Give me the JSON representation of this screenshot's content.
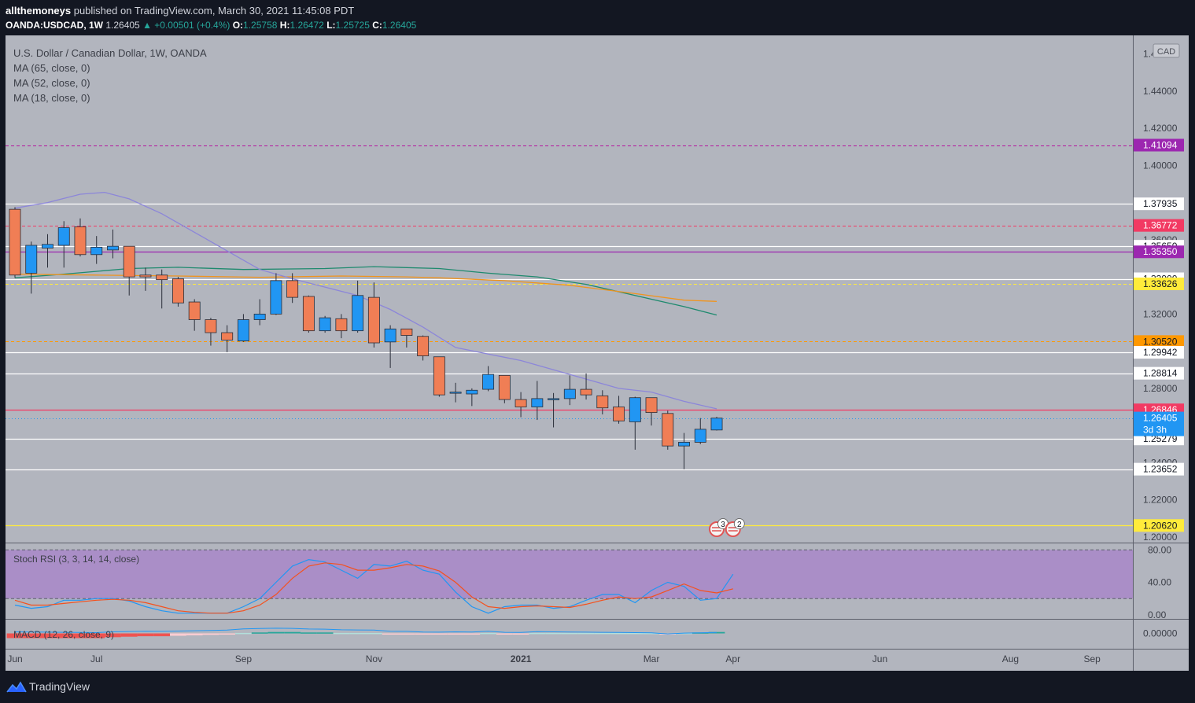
{
  "header": {
    "author": "allthemoneys",
    "published_text": "published on TradingView.com, March 30, 2021 11:45:08 PDT",
    "symbol": "OANDA:USDCAD, 1W",
    "last": "1.26405",
    "change": "▲ +0.00501 (+0.4%)",
    "o_label": "O:",
    "o_value": "1.25758",
    "h_label": "H:",
    "h_value": "1.26472",
    "l_label": "L:",
    "l_value": "1.25725",
    "c_label": "C:",
    "c_value": "1.26405"
  },
  "legend": {
    "title": "U.S. Dollar / Canadian Dollar, 1W, OANDA",
    "ma1": "MA (65, close, 0)",
    "ma2": "MA (52, close, 0)",
    "ma3": "MA (18, close, 0)"
  },
  "currency_badge": "CAD",
  "footer": {
    "brand": "TradingView"
  },
  "colors": {
    "pane_bg": "#b2b5be",
    "rsi_band": "#a887c9",
    "up": "#2196f3",
    "down": "#f07e55",
    "ma65": "#1e8a6e",
    "ma52": "#f0941e",
    "ma18": "#8c86d9"
  },
  "chart_data": [
    {
      "type": "candlestick",
      "title": "U.S. Dollar / Canadian Dollar, 1W, OANDA",
      "ylim": [
        1.197,
        1.47
      ],
      "y_ticks": [
        "1.20000",
        "1.22000",
        "1.24000",
        "1.26000",
        "1.28000",
        "1.30000",
        "1.32000",
        "1.34000",
        "1.36000",
        "1.38000",
        "1.40000",
        "1.42000",
        "1.44000",
        "1.46000"
      ],
      "x_ticks": [
        {
          "label": "Jun",
          "i": 0
        },
        {
          "label": "Jul",
          "i": 5
        },
        {
          "label": "Sep",
          "i": 14
        },
        {
          "label": "Nov",
          "i": 22
        },
        {
          "label": "2021",
          "i": 31
        },
        {
          "label": "Mar",
          "i": 39
        },
        {
          "label": "Apr",
          "i": 44
        },
        {
          "label": "Jun",
          "i": 53
        },
        {
          "label": "Aug",
          "i": 61
        },
        {
          "label": "Sep",
          "i": 66
        }
      ],
      "x_max": 68.5,
      "candles": [
        {
          "o": 1.3764,
          "h": 1.3775,
          "l": 1.3395,
          "c": 1.341
        },
        {
          "o": 1.342,
          "h": 1.359,
          "l": 1.331,
          "c": 1.357
        },
        {
          "o": 1.3555,
          "h": 1.363,
          "l": 1.345,
          "c": 1.3575
        },
        {
          "o": 1.357,
          "h": 1.37,
          "l": 1.345,
          "c": 1.3665
        },
        {
          "o": 1.367,
          "h": 1.3715,
          "l": 1.351,
          "c": 1.352
        },
        {
          "o": 1.352,
          "h": 1.362,
          "l": 1.347,
          "c": 1.356
        },
        {
          "o": 1.3545,
          "h": 1.3655,
          "l": 1.35,
          "c": 1.3565
        },
        {
          "o": 1.3565,
          "h": 1.3565,
          "l": 1.33,
          "c": 1.34
        },
        {
          "o": 1.341,
          "h": 1.345,
          "l": 1.3325,
          "c": 1.34
        },
        {
          "o": 1.341,
          "h": 1.344,
          "l": 1.323,
          "c": 1.3385
        },
        {
          "o": 1.339,
          "h": 1.34,
          "l": 1.324,
          "c": 1.326
        },
        {
          "o": 1.3265,
          "h": 1.328,
          "l": 1.311,
          "c": 1.317
        },
        {
          "o": 1.317,
          "h": 1.318,
          "l": 1.303,
          "c": 1.31
        },
        {
          "o": 1.31,
          "h": 1.314,
          "l": 1.2995,
          "c": 1.306
        },
        {
          "o": 1.3055,
          "h": 1.32,
          "l": 1.305,
          "c": 1.317
        },
        {
          "o": 1.317,
          "h": 1.328,
          "l": 1.314,
          "c": 1.32
        },
        {
          "o": 1.32,
          "h": 1.342,
          "l": 1.3195,
          "c": 1.338
        },
        {
          "o": 1.338,
          "h": 1.342,
          "l": 1.326,
          "c": 1.329
        },
        {
          "o": 1.3295,
          "h": 1.33,
          "l": 1.31,
          "c": 1.311
        },
        {
          "o": 1.311,
          "h": 1.319,
          "l": 1.31,
          "c": 1.318
        },
        {
          "o": 1.3175,
          "h": 1.32,
          "l": 1.307,
          "c": 1.311
        },
        {
          "o": 1.311,
          "h": 1.338,
          "l": 1.31,
          "c": 1.33
        },
        {
          "o": 1.329,
          "h": 1.337,
          "l": 1.302,
          "c": 1.3045
        },
        {
          "o": 1.305,
          "h": 1.314,
          "l": 1.291,
          "c": 1.312
        },
        {
          "o": 1.312,
          "h": 1.312,
          "l": 1.302,
          "c": 1.3085
        },
        {
          "o": 1.308,
          "h": 1.3085,
          "l": 1.295,
          "c": 1.2975
        },
        {
          "o": 1.297,
          "h": 1.297,
          "l": 1.2755,
          "c": 1.2765
        },
        {
          "o": 1.2775,
          "h": 1.283,
          "l": 1.2725,
          "c": 1.278
        },
        {
          "o": 1.277,
          "h": 1.28,
          "l": 1.2705,
          "c": 1.279
        },
        {
          "o": 1.2795,
          "h": 1.292,
          "l": 1.2785,
          "c": 1.2875
        },
        {
          "o": 1.287,
          "h": 1.287,
          "l": 1.272,
          "c": 1.274
        },
        {
          "o": 1.274,
          "h": 1.278,
          "l": 1.2645,
          "c": 1.27
        },
        {
          "o": 1.27,
          "h": 1.284,
          "l": 1.263,
          "c": 1.2745
        },
        {
          "o": 1.274,
          "h": 1.2775,
          "l": 1.259,
          "c": 1.2745
        },
        {
          "o": 1.2745,
          "h": 1.287,
          "l": 1.271,
          "c": 1.2795
        },
        {
          "o": 1.2795,
          "h": 1.288,
          "l": 1.274,
          "c": 1.2765
        },
        {
          "o": 1.276,
          "h": 1.279,
          "l": 1.266,
          "c": 1.2695
        },
        {
          "o": 1.27,
          "h": 1.276,
          "l": 1.261,
          "c": 1.2625
        },
        {
          "o": 1.262,
          "h": 1.2755,
          "l": 1.247,
          "c": 1.275
        },
        {
          "o": 1.275,
          "h": 1.275,
          "l": 1.26,
          "c": 1.267
        },
        {
          "o": 1.2665,
          "h": 1.268,
          "l": 1.247,
          "c": 1.249
        },
        {
          "o": 1.249,
          "h": 1.256,
          "l": 1.2365,
          "c": 1.251
        },
        {
          "o": 1.251,
          "h": 1.264,
          "l": 1.25,
          "c": 1.258
        },
        {
          "o": 1.2576,
          "h": 1.2647,
          "l": 1.2573,
          "c": 1.264
        }
      ],
      "moving_averages": [
        {
          "name": "MA (65, close, 0)",
          "key": "ma65",
          "points": [
            [
              0,
              1.3395
            ],
            [
              3,
              1.3415
            ],
            [
              7,
              1.3445
            ],
            [
              10,
              1.3452
            ],
            [
              14,
              1.344
            ],
            [
              19,
              1.3445
            ],
            [
              22,
              1.3455
            ],
            [
              26,
              1.3445
            ],
            [
              29,
              1.342
            ],
            [
              32,
              1.34
            ],
            [
              35,
              1.336
            ],
            [
              38,
              1.33
            ],
            [
              41,
              1.324
            ],
            [
              43,
              1.3195
            ]
          ]
        },
        {
          "name": "MA (52, close, 0)",
          "key": "ma52",
          "points": [
            [
              0,
              1.3415
            ],
            [
              5,
              1.341
            ],
            [
              10,
              1.3405
            ],
            [
              15,
              1.3398
            ],
            [
              20,
              1.3405
            ],
            [
              24,
              1.34
            ],
            [
              26,
              1.3395
            ],
            [
              30,
              1.338
            ],
            [
              34,
              1.3355
            ],
            [
              38,
              1.331
            ],
            [
              41,
              1.3275
            ],
            [
              43,
              1.3268
            ]
          ]
        },
        {
          "name": "MA (18, close, 0)",
          "key": "ma18",
          "points": [
            [
              0,
              1.377
            ],
            [
              2,
              1.38
            ],
            [
              4,
              1.3845
            ],
            [
              5.5,
              1.3855
            ],
            [
              7,
              1.382
            ],
            [
              9,
              1.374
            ],
            [
              11,
              1.364
            ],
            [
              13,
              1.354
            ],
            [
              15,
              1.344
            ],
            [
              17,
              1.339
            ],
            [
              19,
              1.3345
            ],
            [
              21,
              1.33
            ],
            [
              23,
              1.3225
            ],
            [
              25,
              1.313
            ],
            [
              27,
              1.302
            ],
            [
              29,
              1.2985
            ],
            [
              31,
              1.295
            ],
            [
              33,
              1.29
            ],
            [
              35,
              1.285
            ],
            [
              37,
              1.28
            ],
            [
              39,
              1.278
            ],
            [
              41,
              1.273
            ],
            [
              43,
              1.269
            ]
          ]
        }
      ],
      "levels": [
        {
          "value": 1.41094,
          "label": "1.41094",
          "color": "#b5179e",
          "style": "dashed",
          "badge_bg": "#9c27b0",
          "badge_fg": "#ffffff"
        },
        {
          "value": 1.37935,
          "label": "1.37935",
          "color": "#ffffff",
          "style": "solid",
          "badge_bg": "#ffffff",
          "badge_fg": "#131722"
        },
        {
          "value": 1.36772,
          "label": "1.36772",
          "color": "#f23a63",
          "style": "dashed",
          "badge_bg": "#f23a63",
          "badge_fg": "#ffffff"
        },
        {
          "value": 1.3565,
          "label": "1.35650",
          "color": "#ffffff",
          "style": "solid",
          "badge_bg": "#ffffff",
          "badge_fg": "#131722"
        },
        {
          "value": 1.3535,
          "label": "1.35350",
          "color": "#9c27b0",
          "style": "solid",
          "badge_bg": "#9c27b0",
          "badge_fg": "#ffffff"
        },
        {
          "value": 1.339,
          "label": "1.33900",
          "color": "#ffffff",
          "style": "solid",
          "badge_bg": "#ffffff",
          "badge_fg": "#131722"
        },
        {
          "value": 1.33626,
          "label": "1.33626",
          "color": "#ffeb3b",
          "style": "dashed",
          "badge_bg": "#ffeb3b",
          "badge_fg": "#131722"
        },
        {
          "value": 1.3052,
          "label": "1.30520",
          "color": "#ff9800",
          "style": "dashed",
          "badge_bg": "#ff9800",
          "badge_fg": "#131722"
        },
        {
          "value": 1.29942,
          "label": "1.29942",
          "color": "#ffffff",
          "style": "solid",
          "badge_bg": "#ffffff",
          "badge_fg": "#131722"
        },
        {
          "value": 1.28814,
          "label": "1.28814",
          "color": "#ffffff",
          "style": "solid",
          "badge_bg": "#ffffff",
          "badge_fg": "#131722"
        },
        {
          "value": 1.26846,
          "label": "1.26846",
          "color": "#f23a63",
          "style": "solid",
          "badge_bg": "#f23a63",
          "badge_fg": "#ffffff"
        },
        {
          "value": 1.25279,
          "label": "1.25279",
          "color": "#ffffff",
          "style": "solid",
          "badge_bg": "#ffffff",
          "badge_fg": "#131722"
        },
        {
          "value": 1.23652,
          "label": "1.23652",
          "color": "#ffffff",
          "style": "solid",
          "badge_bg": "#ffffff",
          "badge_fg": "#131722"
        },
        {
          "value": 1.2062,
          "label": "1.20620",
          "color": "#ffeb3b",
          "style": "solid",
          "badge_bg": "#ffeb3b",
          "badge_fg": "#131722"
        }
      ],
      "last_price": {
        "value": 1.26405,
        "label": "1.26405",
        "countdown": "3d 3h"
      },
      "event_badges": [
        {
          "i": 43,
          "count": "3"
        },
        {
          "i": 44,
          "count": "2"
        }
      ]
    },
    {
      "type": "line",
      "title": "Stoch RSI (3, 3, 14, 14, close)",
      "ylim": [
        -5,
        88
      ],
      "y_ticks": [
        "80.00",
        "40.00",
        "0.00"
      ],
      "band": [
        20,
        80
      ],
      "series": [
        {
          "name": "K",
          "color": "#2196f3",
          "values": [
            12,
            8,
            10,
            18,
            18,
            20,
            20,
            17,
            10,
            5,
            2,
            2,
            2,
            2,
            10,
            20,
            40,
            60,
            68,
            65,
            55,
            45,
            62,
            60,
            66,
            55,
            50,
            28,
            10,
            2,
            10,
            12,
            12,
            8,
            10,
            18,
            25,
            25,
            15,
            30,
            40,
            35,
            18,
            20,
            50
          ]
        },
        {
          "name": "D",
          "color": "#f4511e",
          "values": [
            18,
            12,
            12,
            14,
            16,
            18,
            19,
            18,
            15,
            10,
            5,
            3,
            2,
            2,
            5,
            12,
            25,
            45,
            60,
            64,
            62,
            55,
            55,
            58,
            62,
            60,
            54,
            40,
            22,
            10,
            8,
            10,
            11,
            10,
            9,
            13,
            18,
            22,
            20,
            22,
            30,
            38,
            30,
            27,
            32
          ]
        }
      ]
    },
    {
      "type": "bar",
      "title": "MACD (12, 26, close, 9)",
      "y_ticks": [
        "0.00000"
      ],
      "histogram": [
        -1,
        -1,
        -1,
        -1,
        -1,
        -1,
        -0.8,
        -0.7,
        -0.6,
        -0.6,
        -0.5,
        -0.4,
        -0.3,
        -0.2,
        0.1,
        0.2,
        0.3,
        0.3,
        0.2,
        0.2,
        0.1,
        0.1,
        0.1,
        -0.1,
        -0.1,
        -0.2,
        -0.2,
        -0.1,
        -0.1,
        0.1,
        -0.1,
        -0.1,
        0.1,
        0.1,
        0.1,
        0.1,
        0.1,
        0.1,
        0.1,
        0.1,
        -0.1,
        0.1,
        0.2,
        0.3
      ]
    }
  ]
}
